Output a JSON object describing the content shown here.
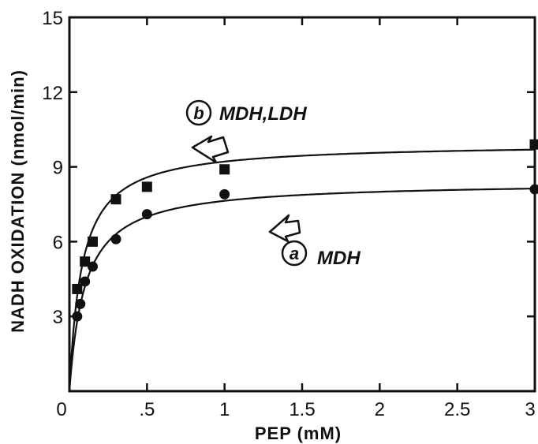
{
  "chart_data": {
    "type": "scatter",
    "xlabel": "PEP (mM)",
    "ylabel": "NADH OXIDATION (nmol/min)",
    "xlim": [
      0,
      3
    ],
    "ylim": [
      0,
      15
    ],
    "x_ticks": [
      0,
      0.5,
      1,
      1.5,
      2,
      2.5,
      3
    ],
    "x_tick_labels": [
      "0",
      ".5",
      "1",
      "1.5",
      "2",
      "2.5",
      "3"
    ],
    "y_ticks": [
      0,
      3,
      6,
      9,
      12,
      15
    ],
    "y_tick_labels": [
      "",
      "3",
      "6",
      "9",
      "12",
      "15"
    ],
    "grid": false,
    "series": [
      {
        "name": "MDH,LDH",
        "tag": "b",
        "marker": "square",
        "points": [
          {
            "x": 0.05,
            "y": 4.1
          },
          {
            "x": 0.1,
            "y": 5.2
          },
          {
            "x": 0.15,
            "y": 6.0
          },
          {
            "x": 0.3,
            "y": 7.7
          },
          {
            "x": 0.5,
            "y": 8.2
          },
          {
            "x": 1.0,
            "y": 8.9
          },
          {
            "x": 3.0,
            "y": 9.9
          }
        ],
        "fit": {
          "vmax": 9.95,
          "km": 0.08
        }
      },
      {
        "name": "MDH",
        "tag": "a",
        "marker": "circle",
        "points": [
          {
            "x": 0.05,
            "y": 3.0
          },
          {
            "x": 0.07,
            "y": 3.5
          },
          {
            "x": 0.1,
            "y": 4.4
          },
          {
            "x": 0.15,
            "y": 5.0
          },
          {
            "x": 0.3,
            "y": 6.1
          },
          {
            "x": 0.5,
            "y": 7.1
          },
          {
            "x": 1.0,
            "y": 7.9
          },
          {
            "x": 3.0,
            "y": 8.1
          }
        ],
        "fit": {
          "vmax": 8.4,
          "km": 0.1
        }
      }
    ]
  }
}
